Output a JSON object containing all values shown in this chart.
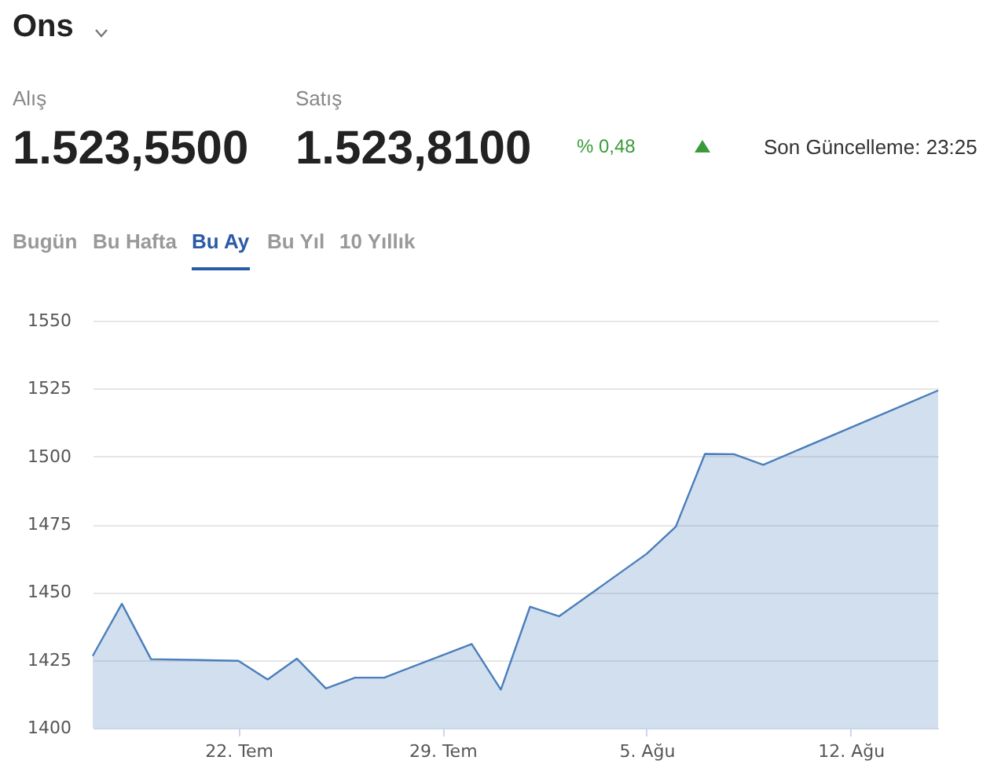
{
  "chart_data": {
    "type": "area",
    "title": "Ons",
    "annotations": [
      "Alış",
      "1.523,5500",
      "Satış",
      "1.523,8100",
      "% 0,48",
      "Son Güncelleme: 23:25",
      "Bugün",
      "Bu Hafta",
      "Bu Ay",
      "Bu Yıl",
      "10 Yıllık"
    ],
    "x": [
      "--07-17",
      "--07-18",
      "--07-19",
      "--07-22",
      "--07-23",
      "--07-24",
      "--07-25",
      "--07-26",
      "--07-27",
      "--07-30",
      "--07-31",
      "--08-01",
      "--08-02",
      "--08-05",
      "--08-06",
      "--08-07",
      "--08-08",
      "--08-09",
      "--08-15"
    ],
    "series": [
      {
        "color": "#4a7ebb",
        "values": [
          1426.5,
          1445.7,
          1425.3,
          1424.7,
          1417.8,
          1425.5,
          1414.5,
          1418.5,
          1418.5,
          1430.9,
          1414.1,
          1444.6,
          1441.1,
          1464.1,
          1474.1,
          1500.9,
          1500.8,
          1496.9,
          1524.3
        ]
      }
    ],
    "xlim": [
      "--07-17",
      "--08-15"
    ],
    "xticks": [
      {
        "value": "--07-22",
        "label": "22. Tem"
      },
      {
        "value": "--07-29",
        "label": "29. Tem"
      },
      {
        "value": "--08-05",
        "label": "5. Ağu"
      },
      {
        "value": "--08-12",
        "label": "12. Ağu"
      }
    ],
    "ylim": [
      1400,
      1550
    ],
    "yticks": [
      1400,
      1425,
      1450,
      1475,
      1500,
      1525,
      1550
    ],
    "grid": "y"
  }
}
